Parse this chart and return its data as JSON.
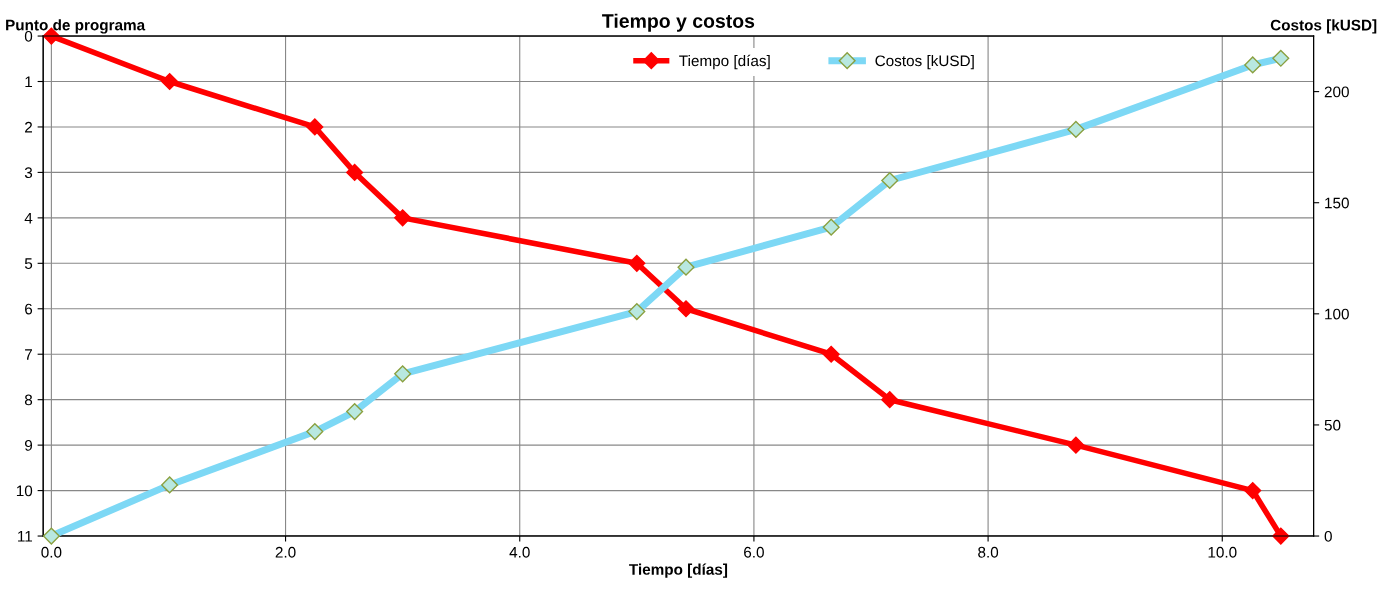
{
  "chart_data": {
    "type": "line",
    "title": "Tiempo y costos",
    "xlabel": "Tiempo [días]",
    "ylabel": "Punto de programa",
    "y2label": "Costos [kUSD]",
    "x": [
      0,
      1.01,
      2.25,
      2.59,
      3.0,
      5.0,
      5.42,
      6.66,
      7.16,
      8.75,
      10.26,
      10.5
    ],
    "series": [
      {
        "name": "Tiempo [días]",
        "color": "#ff0000",
        "values": [
          0,
          1,
          2,
          3,
          4,
          5,
          6,
          7,
          8,
          9,
          10,
          11
        ]
      },
      {
        "name": "Costos [kUSD]",
        "color": "#7dd8f5",
        "axis": "y2",
        "values": [
          0,
          23,
          47,
          56,
          73,
          101,
          121,
          139,
          160,
          183,
          212,
          215
        ]
      }
    ],
    "xlim": [
      -0.07,
      10.78
    ],
    "xticks": [
      {
        "value": 0,
        "label": "0.0"
      },
      {
        "value": 2,
        "label": "2.0"
      },
      {
        "value": 4,
        "label": "4.0"
      },
      {
        "value": 6,
        "label": "6.0"
      },
      {
        "value": 8,
        "label": "8.0"
      },
      {
        "value": 10,
        "label": "10.0"
      }
    ],
    "ylim": [
      11,
      0
    ],
    "yticks": [
      0,
      1,
      2,
      3,
      4,
      5,
      6,
      7,
      8,
      9,
      10,
      11
    ],
    "y2lim": [
      0,
      225
    ],
    "y2ticks": [
      0,
      50,
      100,
      150,
      200
    ],
    "grid": true,
    "legend": "top",
    "marker": "diamond",
    "line_style": "solid"
  }
}
